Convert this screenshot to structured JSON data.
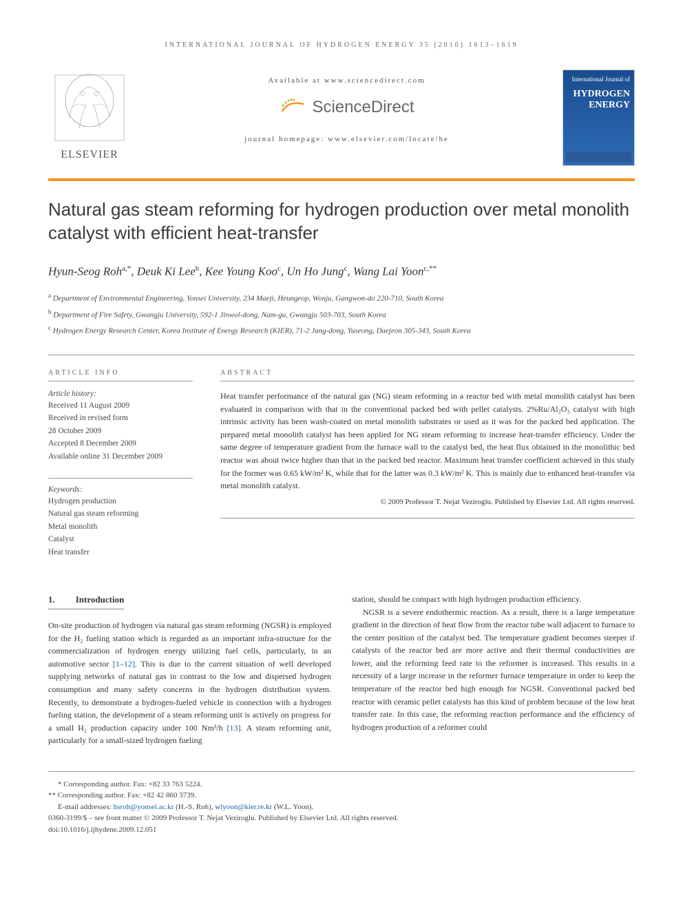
{
  "running_header": "INTERNATIONAL JOURNAL OF HYDROGEN ENERGY 35 (2010) 1613–1619",
  "masthead": {
    "available_at": "Available at www.sciencedirect.com",
    "sd_brand": "ScienceDirect",
    "journal_homepage": "journal homepage: www.elsevier.com/locate/he",
    "elsevier_label": "ELSEVIER",
    "cover_title_line1": "International Journal of",
    "cover_title_line2": "HYDROGEN",
    "cover_title_line3": "ENERGY"
  },
  "article": {
    "title": "Natural gas steam reforming for hydrogen production over metal monolith catalyst with efficient heat-transfer",
    "authors_html": "Hyun-Seog Roh<sup>a,*</sup>, Deuk Ki Lee<sup>b</sup>, Kee Young Koo<sup>c</sup>, Un Ho Jung<sup>c</sup>, Wang Lai Yoon<sup>c,**</sup>",
    "affiliations": {
      "a": "Department of Environmental Engineering, Yonsei University, 234 Maeji, Heungeop, Wonju, Gangwon-do 220-710, South Korea",
      "b": "Department of Fire Safety, Gwangju University, 592-1 Jinwol-dong, Nam-gu, Gwangju 503-703, South Korea",
      "c": "Hydrogen Energy Research Center, Korea Institute of Energy Research (KIER), 71-2 Jang-dong, Yuseong, Daejeon 305-343, South Korea"
    }
  },
  "article_info": {
    "heading": "ARTICLE INFO",
    "history_label": "Article history:",
    "received": "Received 11 August 2009",
    "revised_1": "Received in revised form",
    "revised_2": "28 October 2009",
    "accepted": "Accepted 8 December 2009",
    "online": "Available online 31 December 2009",
    "keywords_label": "Keywords:",
    "keywords": [
      "Hydrogen production",
      "Natural gas steam reforming",
      "Metal monolith",
      "Catalyst",
      "Heat transfer"
    ]
  },
  "abstract": {
    "heading": "ABSTRACT",
    "text": "Heat transfer performance of the natural gas (NG) steam reforming in a reactor bed with metal monolith catalyst has been evaluated in comparison with that in the conventional packed bed with pellet catalysts. 2%Ru/Al₂O₃ catalyst with high intrinsic activity has been wash-coated on metal monolith substrates or used as it was for the packed bed application. The prepared metal monolith catalyst has been applied for NG steam reforming to increase heat-transfer efficiency. Under the same degree of temperature gradient from the furnace wall to the catalyst bed, the heat flux obtained in the monolithic bed reactor was about twice higher than that in the packed bed reactor. Maximum heat transfer coefficient achieved in this study for the former was 0.65 kW/m² K, while that for the latter was 0.3 kW/m² K. This is mainly due to enhanced heat-transfer via metal monolith catalyst.",
    "copyright": "© 2009 Professor T. Nejat Veziroglu. Published by Elsevier Ltd. All rights reserved."
  },
  "body": {
    "section_num": "1.",
    "section_title": "Introduction",
    "col1_p1": "On-site production of hydrogen via natural gas steam reforming (NGSR) is employed for the H₂ fueling station which is regarded as an important infra-structure for the commercialization of hydrogen energy utilizing fuel cells, particularly, in an automotive sector [1–12]. This is due to the current situation of well developed supplying networks of natural gas in contrast to the low and dispersed hydrogen consumption and many safety concerns in the hydrogen distribution system. Recently, to demonstrate a hydrogen-fueled vehicle in connection with a hydrogen fueling station, the development of a steam reforming unit is actively on progress for a small H₂ production capacity under 100 Nm³/h [13]. A steam reforming unit, particularly for a small-sized hydrogen fueling",
    "col2_p1": "station, should be compact with high hydrogen production efficiency.",
    "col2_p2": "NGSR is a severe endothermic reaction. As a result, there is a large temperature gradient in the direction of heat flow from the reactor tube wall adjacent to furnace to the center position of the catalyst bed. The temperature gradient becomes steeper if catalysts of the reactor bed are more active and their thermal conductivities are lower, and the reforming feed rate to the reformer is increased. This results in a necessity of a large increase in the reformer furnace temperature in order to keep the temperature of the reactor bed high enough for NGSR. Conventional packed bed reactor with ceramic pellet catalysts has this kind of problem because of the low heat transfer rate. In this case, the reforming reaction performance and the efficiency of hydrogen production of a reformer could"
  },
  "footer": {
    "corr1": "* Corresponding author. Fax: +82 33 763 5224.",
    "corr2": "** Corresponding author. Fax: +82 42 860 3739.",
    "emails_label": "E-mail addresses: ",
    "email1": "hsroh@yonsei.ac.kr",
    "email1_name": " (H.-S. Roh), ",
    "email2": "wlyoon@kier.re.kr",
    "email2_name": " (W.L. Yoon).",
    "line1": "0360-3199/$ – see front matter © 2009 Professor T. Nejat Veziroglu. Published by Elsevier Ltd. All rights reserved.",
    "doi": "doi:10.1016/j.ijhydene.2009.12.051"
  },
  "colors": {
    "accent_orange": "#f7941d",
    "link_blue": "#2360a5",
    "journal_blue": "#1a4d8f",
    "text_gray": "#666666"
  }
}
